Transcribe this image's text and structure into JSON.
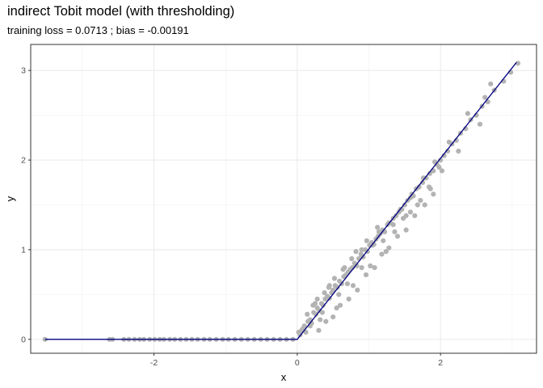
{
  "chart_data": {
    "type": "scatter",
    "title": "indirect Tobit model (with thresholding)",
    "subtitle": "training loss = 0.0713 ; bias = -0.00191",
    "xlabel": "x",
    "ylabel": "y",
    "xlim": [
      -3.72,
      3.34
    ],
    "ylim": [
      -0.155,
      3.29
    ],
    "xticks": [
      -2,
      0,
      2
    ],
    "yticks": [
      0,
      1,
      2,
      3
    ],
    "grid": true,
    "point_color": "#b3b3b3",
    "line_color": "#000080",
    "fit_line": {
      "x": [
        -3.52,
        0.0,
        3.06
      ],
      "y": [
        0.0,
        0.0,
        3.09
      ]
    },
    "points": {
      "x": [
        -3.52,
        -2.62,
        -2.58,
        -2.42,
        -2.35,
        -2.27,
        -2.2,
        -2.14,
        -2.06,
        -1.99,
        -1.92,
        -1.86,
        -1.78,
        -1.71,
        -1.63,
        -1.55,
        -1.47,
        -1.39,
        -1.3,
        -1.22,
        -1.13,
        -1.04,
        -0.96,
        -0.87,
        -0.78,
        -0.69,
        -0.6,
        -0.51,
        -0.42,
        -0.33,
        -0.24,
        -0.15,
        -0.06,
        0.02,
        0.04,
        0.06,
        0.08,
        0.1,
        0.12,
        0.15,
        0.18,
        0.2,
        0.23,
        0.26,
        0.28,
        0.31,
        0.34,
        0.36,
        0.39,
        0.42,
        0.45,
        0.48,
        0.5,
        0.53,
        0.56,
        0.59,
        0.62,
        0.65,
        0.68,
        0.71,
        0.74,
        0.77,
        0.8,
        0.83,
        0.86,
        0.89,
        0.92,
        0.95,
        0.98,
        1.01,
        1.04,
        1.07,
        1.1,
        1.13,
        1.16,
        1.19,
        1.22,
        1.26,
        1.3,
        1.34,
        1.38,
        1.42,
        1.46,
        1.5,
        1.54,
        1.58,
        1.62,
        1.66,
        1.7,
        1.75,
        1.8,
        1.85,
        1.9,
        1.95,
        2.0,
        2.05,
        2.1,
        2.16,
        2.22,
        2.28,
        2.35,
        2.42,
        2.5,
        2.58,
        2.62,
        2.66,
        2.75,
        2.88,
        2.98,
        3.08,
        0.22,
        0.28,
        0.35,
        0.38,
        0.45,
        0.52,
        0.58,
        0.64,
        0.7,
        0.76,
        0.82,
        0.9,
        0.97,
        1.05,
        1.12,
        1.2,
        1.28,
        1.36,
        1.44,
        1.52,
        1.6,
        1.68,
        1.76,
        1.84,
        1.92,
        2.02,
        2.12,
        2.25,
        2.38,
        2.55,
        2.7,
        0.3,
        0.4,
        0.5,
        0.6,
        0.72,
        0.84,
        0.96,
        1.08,
        1.18,
        1.28,
        1.4,
        1.52,
        1.64,
        1.78,
        1.9,
        0.14,
        0.18,
        0.25,
        0.32,
        0.44,
        0.55,
        0.66,
        0.78,
        0.9,
        1.02,
        1.14,
        1.24,
        1.34,
        1.48,
        1.58,
        1.72,
        1.86,
        1.98
      ],
      "y": [
        0.0,
        0.0,
        0.0,
        0.0,
        0.0,
        0.0,
        0.0,
        0.0,
        0.0,
        0.0,
        0.0,
        0.0,
        0.0,
        0.0,
        0.0,
        0.0,
        0.0,
        0.0,
        0.0,
        0.0,
        0.0,
        0.0,
        0.0,
        0.0,
        0.0,
        0.0,
        0.0,
        0.0,
        0.0,
        0.0,
        0.0,
        0.0,
        0.0,
        0.08,
        0.05,
        0.1,
        0.12,
        0.15,
        0.08,
        0.2,
        0.22,
        0.18,
        0.3,
        0.28,
        0.35,
        0.32,
        0.4,
        0.38,
        0.45,
        0.48,
        0.46,
        0.52,
        0.55,
        0.6,
        0.58,
        0.65,
        0.62,
        0.7,
        0.72,
        0.75,
        0.78,
        0.8,
        0.85,
        0.82,
        0.9,
        0.95,
        0.92,
        1.0,
        0.98,
        1.05,
        1.08,
        1.06,
        1.12,
        1.15,
        1.18,
        1.22,
        1.2,
        1.28,
        1.3,
        1.35,
        1.38,
        1.42,
        1.45,
        1.5,
        1.55,
        1.58,
        1.6,
        1.68,
        1.7,
        1.75,
        1.8,
        1.85,
        1.88,
        1.95,
        2.0,
        2.05,
        2.1,
        2.18,
        2.22,
        2.3,
        2.35,
        2.45,
        2.5,
        2.6,
        2.7,
        2.65,
        2.78,
        2.88,
        2.98,
        3.08,
        0.38,
        0.45,
        0.3,
        0.52,
        0.6,
        0.68,
        0.5,
        0.78,
        0.62,
        0.9,
        0.98,
        0.8,
        1.1,
        1.05,
        1.25,
        1.1,
        1.3,
        1.2,
        1.45,
        1.38,
        1.62,
        1.5,
        1.8,
        1.7,
        1.98,
        1.88,
        2.2,
        2.1,
        2.52,
        2.4,
        2.85,
        0.1,
        0.2,
        0.25,
        0.38,
        0.45,
        0.55,
        0.72,
        0.8,
        0.95,
        1.02,
        1.15,
        1.22,
        1.38,
        1.5,
        1.62,
        0.28,
        0.15,
        0.4,
        0.22,
        0.58,
        0.35,
        0.8,
        0.6,
        1.0,
        0.82,
        1.2,
        0.98,
        1.28,
        1.35,
        1.42,
        1.55,
        1.68,
        1.92
      ]
    }
  }
}
